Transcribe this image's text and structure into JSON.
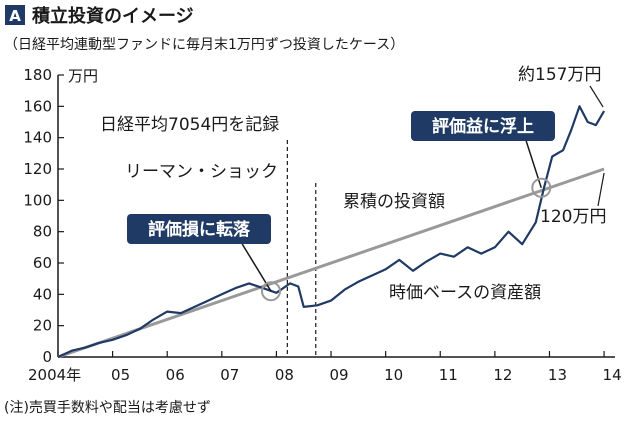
{
  "chart_data": {
    "type": "line",
    "panel_letter": "A",
    "title": "積立投資のイメージ",
    "subtitle": "（日経平均連動型ファンドに毎月末1万円ずつ投資したケース）",
    "unit_label": "万円",
    "footnote": "(注)売買手数料や配当は考慮せず",
    "xlim": [
      2004.0,
      2014.2
    ],
    "ylim": [
      0,
      180
    ],
    "yticks": [
      0,
      20,
      40,
      60,
      80,
      100,
      120,
      140,
      160,
      180
    ],
    "xticks": [
      {
        "x": 2004,
        "label": "2004年"
      },
      {
        "x": 2005,
        "label": "05"
      },
      {
        "x": 2006,
        "label": "06"
      },
      {
        "x": 2007,
        "label": "07"
      },
      {
        "x": 2008,
        "label": "08"
      },
      {
        "x": 2009,
        "label": "09"
      },
      {
        "x": 2010,
        "label": "10"
      },
      {
        "x": 2011,
        "label": "11"
      },
      {
        "x": 2012,
        "label": "12"
      },
      {
        "x": 2013,
        "label": "13"
      },
      {
        "x": 2014,
        "label": "14"
      }
    ],
    "series": [
      {
        "name": "累積の投資額",
        "color": "#999999",
        "points": [
          [
            2004.0,
            0
          ],
          [
            2014.0,
            120
          ]
        ]
      },
      {
        "name": "時価ベースの資産額",
        "color": "#1f3a64",
        "points": [
          [
            2004.0,
            0
          ],
          [
            2004.25,
            4
          ],
          [
            2004.5,
            6
          ],
          [
            2004.75,
            9
          ],
          [
            2005.0,
            11
          ],
          [
            2005.25,
            14
          ],
          [
            2005.5,
            18
          ],
          [
            2005.75,
            24
          ],
          [
            2006.0,
            29
          ],
          [
            2006.25,
            28
          ],
          [
            2006.5,
            32
          ],
          [
            2006.75,
            36
          ],
          [
            2007.0,
            40
          ],
          [
            2007.25,
            44
          ],
          [
            2007.5,
            47
          ],
          [
            2007.75,
            44
          ],
          [
            2008.0,
            41
          ],
          [
            2008.25,
            47
          ],
          [
            2008.4,
            45
          ],
          [
            2008.5,
            32
          ],
          [
            2008.75,
            33
          ],
          [
            2009.0,
            36
          ],
          [
            2009.25,
            43
          ],
          [
            2009.5,
            48
          ],
          [
            2009.75,
            52
          ],
          [
            2010.0,
            56
          ],
          [
            2010.25,
            62
          ],
          [
            2010.5,
            55
          ],
          [
            2010.75,
            61
          ],
          [
            2011.0,
            66
          ],
          [
            2011.25,
            64
          ],
          [
            2011.5,
            70
          ],
          [
            2011.75,
            66
          ],
          [
            2012.0,
            70
          ],
          [
            2012.25,
            80
          ],
          [
            2012.5,
            72
          ],
          [
            2012.75,
            86
          ],
          [
            2012.9,
            108
          ],
          [
            2013.05,
            128
          ],
          [
            2013.25,
            132
          ],
          [
            2013.4,
            145
          ],
          [
            2013.55,
            160
          ],
          [
            2013.7,
            150
          ],
          [
            2013.85,
            148
          ],
          [
            2014.0,
            157
          ]
        ]
      }
    ],
    "events": [
      {
        "x": 2008.2,
        "label": "日経平均7054円を記録"
      },
      {
        "x": 2008.72,
        "label": "リーマン・ショック"
      }
    ],
    "annotations": [
      {
        "label": "評価損に転落",
        "x": 2007.9,
        "y": 42
      },
      {
        "label": "評価益に浮上",
        "x": 2012.85,
        "y": 108
      }
    ],
    "value_labels": [
      {
        "label": "約157万円",
        "x": 2014.0,
        "y": 157
      },
      {
        "label": "120万円",
        "x": 2014.0,
        "y": 120
      }
    ]
  }
}
